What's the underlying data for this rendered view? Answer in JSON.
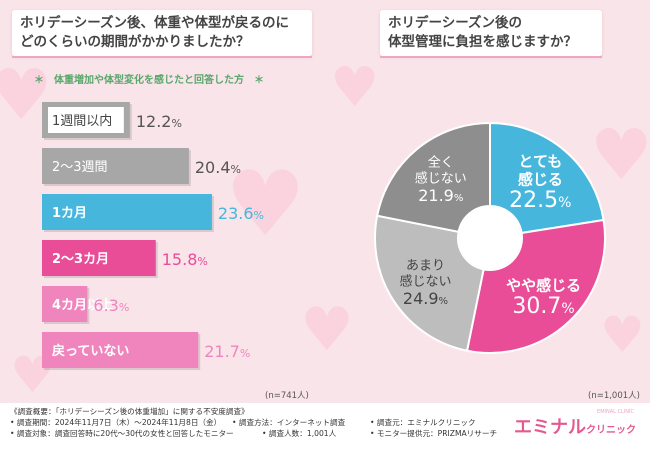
{
  "left_title": [
    "ホリデーシーズン後、体重や体型が戻るのに",
    "どのくらいの期間がかかりましたか？"
  ],
  "left_subtitle": "＊　体重増加や体型変化を感じたと回答した方　＊",
  "right_title": [
    "ホリデーシーズン後の",
    "体型管理に負担を感じますか？"
  ],
  "colors": {
    "grey": "#a7a7a7",
    "blue": "#47b6dd",
    "pink": "#e94d98",
    "lightpink": "#f085be",
    "darkgrey": "#8e8e8e",
    "lightgrey": "#bdbdbd"
  },
  "chart_data": [
    {
      "type": "bar",
      "orientation": "horizontal",
      "title": "ホリデーシーズン後、体重や体型が戻るのにどのくらいの期間がかかりましたか？",
      "categories": [
        "1週間以内",
        "2〜3週間",
        "1カ月",
        "2〜3カ月",
        "4カ月以上",
        "戻っていない"
      ],
      "values": [
        12.2,
        20.4,
        23.6,
        15.8,
        6.3,
        21.7
      ],
      "value_labels": [
        {
          "int": "12.",
          "dec": "2",
          "unit": "%"
        },
        {
          "int": "20.",
          "dec": "4",
          "unit": "%"
        },
        {
          "int": "23.",
          "dec": "6",
          "unit": "%"
        },
        {
          "int": "15.",
          "dec": "8",
          "unit": "%"
        },
        {
          "int": "6.",
          "dec": "3",
          "unit": "%"
        },
        {
          "int": "21.",
          "dec": "7",
          "unit": "%"
        }
      ],
      "bar_colors": [
        "#a7a7a7",
        "#a7a7a7",
        "#47b6dd",
        "#e94d98",
        "#f085be",
        "#f085be"
      ],
      "label_colors": [
        "#444444",
        "#ffffff",
        "#ffffff",
        "#ffffff",
        "#ffffff",
        "#ffffff"
      ],
      "value_colors": [
        "#555555",
        "#555555",
        "#47b6dd",
        "#e94d98",
        "#f085be",
        "#f085be"
      ],
      "sample_size": "(n=741人)",
      "xlim": [
        0,
        25
      ]
    },
    {
      "type": "pie",
      "subtype": "donut",
      "title": "ホリデーシーズン後の体型管理に負担を感じますか？",
      "categories": [
        "とても感じる",
        "やや感じる",
        "あまり感じない",
        "全く感じない"
      ],
      "category_lines": [
        [
          "とても",
          "感じる"
        ],
        [
          "やや感じる"
        ],
        [
          "あまり",
          "感じない"
        ],
        [
          "全く",
          "感じない"
        ]
      ],
      "values": [
        22.5,
        30.7,
        24.9,
        21.9
      ],
      "value_labels": [
        {
          "int": "22.",
          "dec": "5",
          "unit": "%"
        },
        {
          "int": "30.",
          "dec": "7",
          "unit": "%"
        },
        {
          "int": "24.",
          "dec": "9",
          "unit": "%"
        },
        {
          "int": "21.",
          "dec": "9",
          "unit": "%"
        }
      ],
      "slice_colors": [
        "#47b6dd",
        "#e94d98",
        "#bdbdbd",
        "#8e8e8e"
      ],
      "text_colors": [
        "#ffffff",
        "#ffffff",
        "#444444",
        "#ffffff"
      ],
      "sample_size": "(n=1,001人)"
    }
  ],
  "footer": {
    "lines": [
      "《調査概要：「ホリデーシーズン後の体重増加」に関する不安度調査》",
      "• 調査期間：2024年11月7日（木）〜2024年11月8日（金）",
      "• 調査方法：インターネット調査",
      "• 調査元：エミナルクリニック",
      "• 調査対象：調査回答時に20代〜30代の女性と回答したモニター",
      "• 調査人数：1,001人",
      "• モニター提供元：PRIZMAリサーチ"
    ],
    "logo_main": "エミナル",
    "logo_small": "クリニック",
    "logo_sub": "EMINAL CLINIC"
  }
}
